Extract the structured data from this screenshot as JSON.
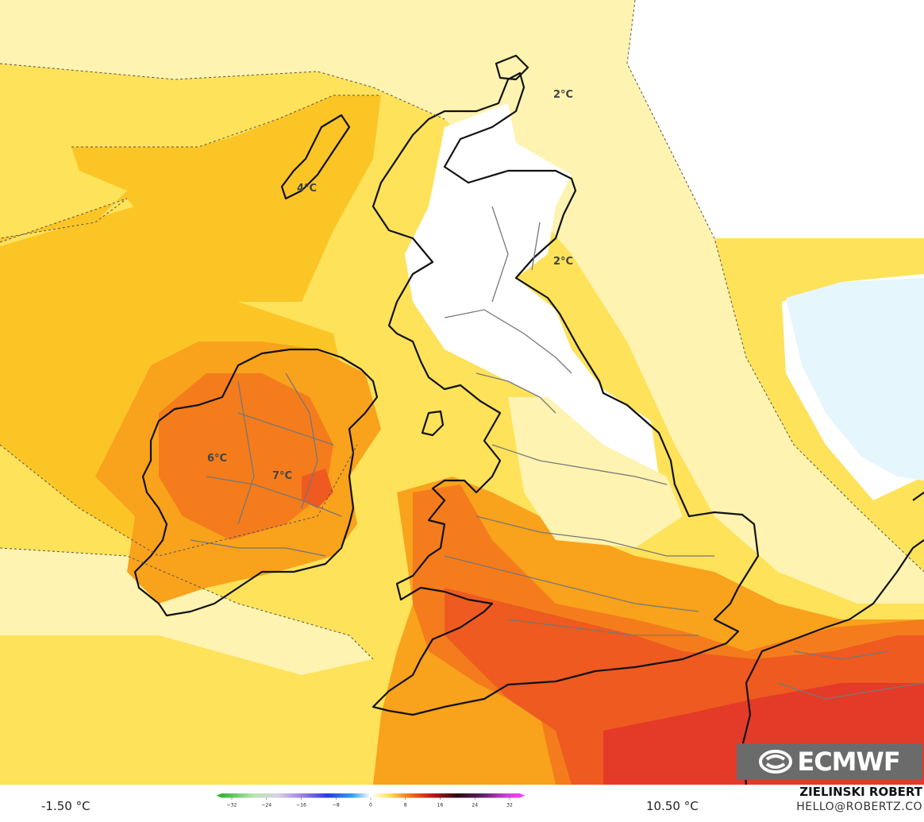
{
  "map": {
    "contour_labels": [
      "2°C",
      "2°C",
      "4°C",
      "6°C",
      "7°C"
    ],
    "colors": {
      "white_zone": "#ffffff",
      "pale_yellow": "#fef3b0",
      "yellow": "#fde25a",
      "gold": "#fcc526",
      "orange": "#f9a21c",
      "dark_orange": "#f47c1c",
      "red_orange": "#ee5a20",
      "red": "#e43a28",
      "sea_ice_blue": "#e6f6fd"
    }
  },
  "logo": {
    "text": "ECMWF"
  },
  "legend": {
    "min_value": "-1.50 °C",
    "max_value": "10.50 °C",
    "ticks": [
      "−32",
      "−24",
      "−16",
      "−8",
      "0",
      "8",
      "16",
      "24",
      "32"
    ]
  },
  "credits": {
    "author": "ZIELINSKI ROBERT",
    "email": "HELLO@ROBERTZ.CO"
  }
}
